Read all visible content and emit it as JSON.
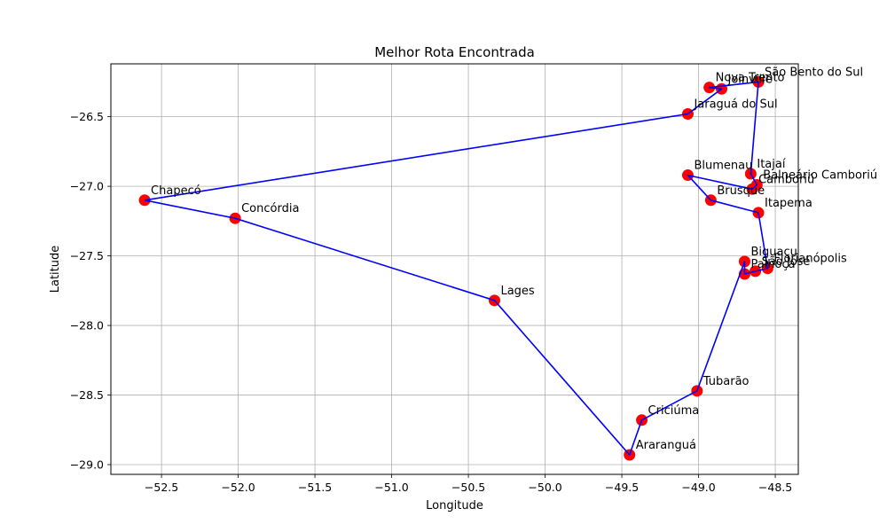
{
  "chart_data": {
    "type": "scatter",
    "title": "Melhor Rota Encontrada",
    "xlabel": "Longitude",
    "ylabel": "Latitude",
    "xlim": [
      -52.83,
      -48.35
    ],
    "ylim": [
      -29.07,
      -26.12
    ],
    "xticks": [
      -52.5,
      -52.0,
      -51.5,
      -51.0,
      -50.5,
      -50.0,
      -49.5,
      -49.0,
      -48.5
    ],
    "xtick_labels": [
      "−52.5",
      "−52.0",
      "−51.5",
      "−51.0",
      "−50.5",
      "−50.0",
      "−49.5",
      "−49.0",
      "−48.5"
    ],
    "yticks": [
      -26.5,
      -27.0,
      -27.5,
      -28.0,
      -28.5,
      -29.0
    ],
    "ytick_labels": [
      "−26.5",
      "−27.0",
      "−27.5",
      "−28.0",
      "−28.5",
      "−29.0"
    ],
    "grid": true,
    "marker_color": "#ff0000",
    "route_color": "#0000ff",
    "points": [
      {
        "name": "Chapecó",
        "x": -52.61,
        "y": -27.1
      },
      {
        "name": "Concórdia",
        "x": -52.02,
        "y": -27.23
      },
      {
        "name": "Lages",
        "x": -50.33,
        "y": -27.82
      },
      {
        "name": "Araranguá",
        "x": -49.45,
        "y": -28.93
      },
      {
        "name": "Criciúma",
        "x": -49.37,
        "y": -28.68
      },
      {
        "name": "Tubarão",
        "x": -49.01,
        "y": -28.47
      },
      {
        "name": "Biguaçu",
        "x": -48.7,
        "y": -27.54
      },
      {
        "name": "Palhoça",
        "x": -48.7,
        "y": -27.63
      },
      {
        "name": "São José",
        "x": -48.63,
        "y": -27.61
      },
      {
        "name": "Florianópolis",
        "x": -48.55,
        "y": -27.59
      },
      {
        "name": "Itapema",
        "x": -48.61,
        "y": -27.19
      },
      {
        "name": "Brusque",
        "x": -48.92,
        "y": -27.1
      },
      {
        "name": "Blumenau",
        "x": -49.07,
        "y": -26.92
      },
      {
        "name": "Camboriú",
        "x": -48.65,
        "y": -27.02
      },
      {
        "name": "Balneário Camboriú",
        "x": -48.62,
        "y": -26.99
      },
      {
        "name": "Itajaí",
        "x": -48.66,
        "y": -26.91
      },
      {
        "name": "São Bento do Sul",
        "x": -48.61,
        "y": -26.25
      },
      {
        "name": "Nova Trento",
        "x": -48.93,
        "y": -26.29
      },
      {
        "name": "Joinville",
        "x": -48.85,
        "y": -26.3
      },
      {
        "name": "Jaraguá do Sul",
        "x": -49.07,
        "y": -26.48
      }
    ],
    "route": [
      "Chapecó",
      "Concórdia",
      "Lages",
      "Araranguá",
      "Criciúma",
      "Tubarão",
      "Biguaçu",
      "Palhoça",
      "São José",
      "Florianópolis",
      "Itapema",
      "Brusque",
      "Blumenau",
      "Camboriú",
      "Balneário Camboriú",
      "Itajaí",
      "São Bento do Sul",
      "Nova Trento",
      "Joinville",
      "Jaraguá do Sul",
      "Chapecó"
    ]
  }
}
